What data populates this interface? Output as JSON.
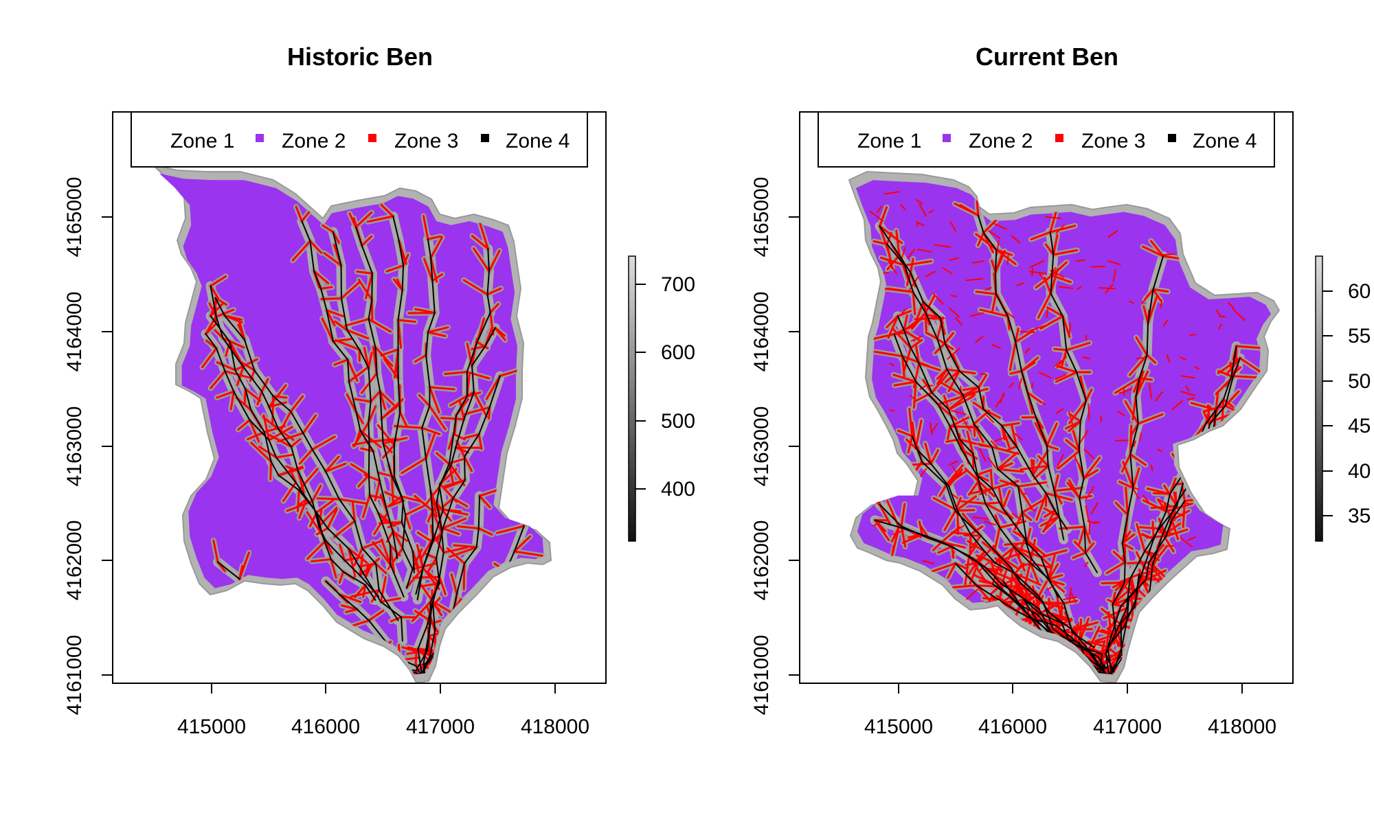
{
  "maps": [
    {
      "title": "Historic Ben",
      "x_ticks": [
        "415000",
        "416000",
        "417000",
        "418000"
      ],
      "y_ticks": [
        "4161000",
        "4162000",
        "4163000",
        "4164000",
        "4165000"
      ],
      "colorbar_ticks": [
        "400",
        "500",
        "600",
        "700"
      ],
      "legend": [
        {
          "label": "Zone 1",
          "color": "#b0b0b0"
        },
        {
          "label": "Zone 2",
          "color": "#9a34ee"
        },
        {
          "label": "Zone 3",
          "color": "#ff0000"
        },
        {
          "label": "Zone 4",
          "color": "#000000"
        }
      ]
    },
    {
      "title": "Current Ben",
      "x_ticks": [
        "415000",
        "416000",
        "417000",
        "418000"
      ],
      "y_ticks": [
        "4161000",
        "4162000",
        "4163000",
        "4164000",
        "4165000"
      ],
      "colorbar_ticks": [
        "35",
        "40",
        "45",
        "50",
        "55",
        "60"
      ],
      "legend": [
        {
          "label": "Zone 1",
          "color": "#b0b0b0"
        },
        {
          "label": "Zone 2",
          "color": "#9a34ee"
        },
        {
          "label": "Zone 3",
          "color": "#ff0000"
        },
        {
          "label": "Zone 4",
          "color": "#000000"
        }
      ]
    }
  ]
}
